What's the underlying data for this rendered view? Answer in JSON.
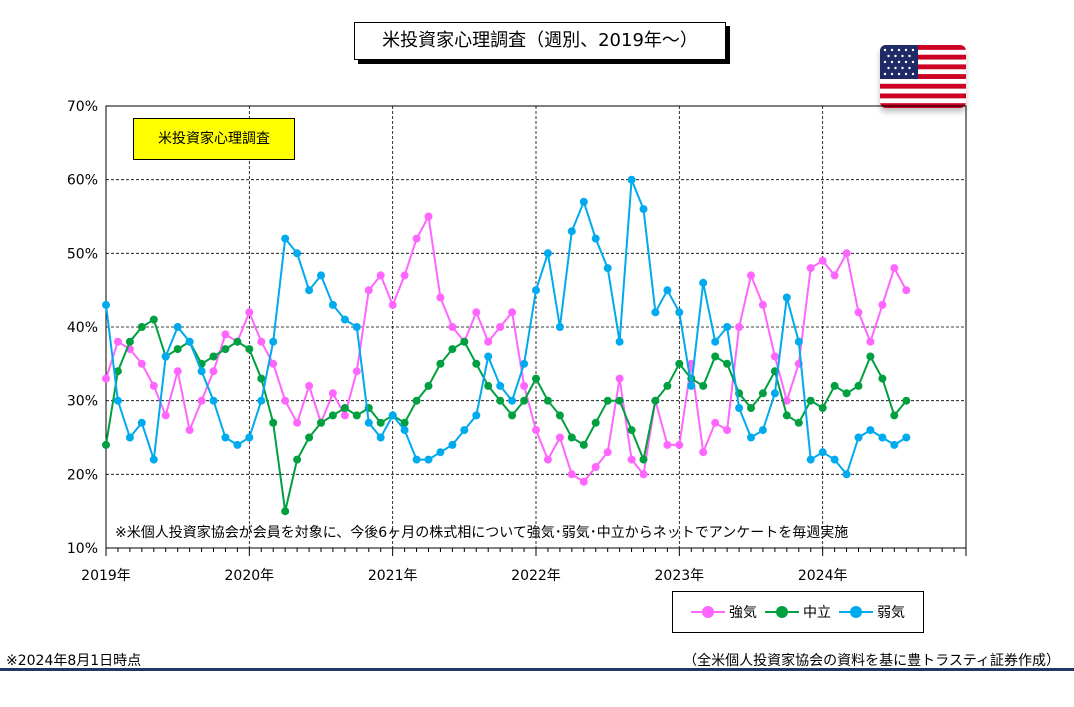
{
  "title": "米投資家心理調査（週別、2019年～）",
  "label_box": "米投資家心理調査",
  "note": "※米個人投資家協会が会員を対象に、今後6ヶ月の株式相について強気･弱気･中立からネットでアンケートを毎週実施",
  "footer_left": "※2024年8月1日時点",
  "footer_right": "（全米個人投資家協会の資料を基に豊トラスティ証券作成）",
  "flag_icon": "us-flag-icon",
  "chart_data": {
    "type": "line",
    "ylim": [
      10,
      70
    ],
    "y_ticks": [
      "10%",
      "20%",
      "30%",
      "40%",
      "50%",
      "60%",
      "70%"
    ],
    "x_range": [
      "2019-01",
      "2025-01"
    ],
    "x_ticks": [
      "2019年",
      "2020年",
      "2021年",
      "2022年",
      "2023年",
      "2024年"
    ],
    "grid": true,
    "legend_position": "bottom-right",
    "series": [
      {
        "name": "強気",
        "color": "#ff66ff",
        "values": [
          {
            "x": "2019-01",
            "y": 33
          },
          {
            "x": "2019-02",
            "y": 38
          },
          {
            "x": "2019-03",
            "y": 37
          },
          {
            "x": "2019-04",
            "y": 35
          },
          {
            "x": "2019-05",
            "y": 32
          },
          {
            "x": "2019-06",
            "y": 28
          },
          {
            "x": "2019-07",
            "y": 34
          },
          {
            "x": "2019-08",
            "y": 26
          },
          {
            "x": "2019-09",
            "y": 30
          },
          {
            "x": "2019-10",
            "y": 34
          },
          {
            "x": "2019-11",
            "y": 39
          },
          {
            "x": "2019-12",
            "y": 38
          },
          {
            "x": "2020-01",
            "y": 42
          },
          {
            "x": "2020-02",
            "y": 38
          },
          {
            "x": "2020-03",
            "y": 35
          },
          {
            "x": "2020-04",
            "y": 30
          },
          {
            "x": "2020-05",
            "y": 27
          },
          {
            "x": "2020-06",
            "y": 32
          },
          {
            "x": "2020-07",
            "y": 27
          },
          {
            "x": "2020-08",
            "y": 31
          },
          {
            "x": "2020-09",
            "y": 28
          },
          {
            "x": "2020-10",
            "y": 34
          },
          {
            "x": "2020-11",
            "y": 45
          },
          {
            "x": "2020-12",
            "y": 47
          },
          {
            "x": "2021-01",
            "y": 43
          },
          {
            "x": "2021-02",
            "y": 47
          },
          {
            "x": "2021-03",
            "y": 52
          },
          {
            "x": "2021-04",
            "y": 55
          },
          {
            "x": "2021-05",
            "y": 44
          },
          {
            "x": "2021-06",
            "y": 40
          },
          {
            "x": "2021-07",
            "y": 38
          },
          {
            "x": "2021-08",
            "y": 42
          },
          {
            "x": "2021-09",
            "y": 38
          },
          {
            "x": "2021-10",
            "y": 40
          },
          {
            "x": "2021-11",
            "y": 42
          },
          {
            "x": "2021-12",
            "y": 32
          },
          {
            "x": "2022-01",
            "y": 26
          },
          {
            "x": "2022-02",
            "y": 22
          },
          {
            "x": "2022-03",
            "y": 25
          },
          {
            "x": "2022-04",
            "y": 20
          },
          {
            "x": "2022-05",
            "y": 19
          },
          {
            "x": "2022-06",
            "y": 21
          },
          {
            "x": "2022-07",
            "y": 23
          },
          {
            "x": "2022-08",
            "y": 33
          },
          {
            "x": "2022-09",
            "y": 22
          },
          {
            "x": "2022-10",
            "y": 20
          },
          {
            "x": "2022-11",
            "y": 30
          },
          {
            "x": "2022-12",
            "y": 24
          },
          {
            "x": "2023-01",
            "y": 24
          },
          {
            "x": "2023-02",
            "y": 35
          },
          {
            "x": "2023-03",
            "y": 23
          },
          {
            "x": "2023-04",
            "y": 27
          },
          {
            "x": "2023-05",
            "y": 26
          },
          {
            "x": "2023-06",
            "y": 40
          },
          {
            "x": "2023-07",
            "y": 47
          },
          {
            "x": "2023-08",
            "y": 43
          },
          {
            "x": "2023-09",
            "y": 36
          },
          {
            "x": "2023-10",
            "y": 30
          },
          {
            "x": "2023-11",
            "y": 35
          },
          {
            "x": "2023-12",
            "y": 48
          },
          {
            "x": "2024-01",
            "y": 49
          },
          {
            "x": "2024-02",
            "y": 47
          },
          {
            "x": "2024-03",
            "y": 50
          },
          {
            "x": "2024-04",
            "y": 42
          },
          {
            "x": "2024-05",
            "y": 38
          },
          {
            "x": "2024-06",
            "y": 43
          },
          {
            "x": "2024-07",
            "y": 48
          },
          {
            "x": "2024-08",
            "y": 45
          }
        ]
      },
      {
        "name": "中立",
        "color": "#00a040",
        "values": [
          {
            "x": "2019-01",
            "y": 24
          },
          {
            "x": "2019-02",
            "y": 34
          },
          {
            "x": "2019-03",
            "y": 38
          },
          {
            "x": "2019-04",
            "y": 40
          },
          {
            "x": "2019-05",
            "y": 41
          },
          {
            "x": "2019-06",
            "y": 36
          },
          {
            "x": "2019-07",
            "y": 37
          },
          {
            "x": "2019-08",
            "y": 38
          },
          {
            "x": "2019-09",
            "y": 35
          },
          {
            "x": "2019-10",
            "y": 36
          },
          {
            "x": "2019-11",
            "y": 37
          },
          {
            "x": "2019-12",
            "y": 38
          },
          {
            "x": "2020-01",
            "y": 37
          },
          {
            "x": "2020-02",
            "y": 33
          },
          {
            "x": "2020-03",
            "y": 27
          },
          {
            "x": "2020-04",
            "y": 15
          },
          {
            "x": "2020-05",
            "y": 22
          },
          {
            "x": "2020-06",
            "y": 25
          },
          {
            "x": "2020-07",
            "y": 27
          },
          {
            "x": "2020-08",
            "y": 28
          },
          {
            "x": "2020-09",
            "y": 29
          },
          {
            "x": "2020-10",
            "y": 28
          },
          {
            "x": "2020-11",
            "y": 29
          },
          {
            "x": "2020-12",
            "y": 27
          },
          {
            "x": "2021-01",
            "y": 28
          },
          {
            "x": "2021-02",
            "y": 27
          },
          {
            "x": "2021-03",
            "y": 30
          },
          {
            "x": "2021-04",
            "y": 32
          },
          {
            "x": "2021-05",
            "y": 35
          },
          {
            "x": "2021-06",
            "y": 37
          },
          {
            "x": "2021-07",
            "y": 38
          },
          {
            "x": "2021-08",
            "y": 35
          },
          {
            "x": "2021-09",
            "y": 32
          },
          {
            "x": "2021-10",
            "y": 30
          },
          {
            "x": "2021-11",
            "y": 28
          },
          {
            "x": "2021-12",
            "y": 30
          },
          {
            "x": "2022-01",
            "y": 33
          },
          {
            "x": "2022-02",
            "y": 30
          },
          {
            "x": "2022-03",
            "y": 28
          },
          {
            "x": "2022-04",
            "y": 25
          },
          {
            "x": "2022-05",
            "y": 24
          },
          {
            "x": "2022-06",
            "y": 27
          },
          {
            "x": "2022-07",
            "y": 30
          },
          {
            "x": "2022-08",
            "y": 30
          },
          {
            "x": "2022-09",
            "y": 26
          },
          {
            "x": "2022-10",
            "y": 22
          },
          {
            "x": "2022-11",
            "y": 30
          },
          {
            "x": "2022-12",
            "y": 32
          },
          {
            "x": "2023-01",
            "y": 35
          },
          {
            "x": "2023-02",
            "y": 33
          },
          {
            "x": "2023-03",
            "y": 32
          },
          {
            "x": "2023-04",
            "y": 36
          },
          {
            "x": "2023-05",
            "y": 35
          },
          {
            "x": "2023-06",
            "y": 31
          },
          {
            "x": "2023-07",
            "y": 29
          },
          {
            "x": "2023-08",
            "y": 31
          },
          {
            "x": "2023-09",
            "y": 34
          },
          {
            "x": "2023-10",
            "y": 28
          },
          {
            "x": "2023-11",
            "y": 27
          },
          {
            "x": "2023-12",
            "y": 30
          },
          {
            "x": "2024-01",
            "y": 29
          },
          {
            "x": "2024-02",
            "y": 32
          },
          {
            "x": "2024-03",
            "y": 31
          },
          {
            "x": "2024-04",
            "y": 32
          },
          {
            "x": "2024-05",
            "y": 36
          },
          {
            "x": "2024-06",
            "y": 33
          },
          {
            "x": "2024-07",
            "y": 28
          },
          {
            "x": "2024-08",
            "y": 30
          }
        ]
      },
      {
        "name": "弱気",
        "color": "#00aaee",
        "values": [
          {
            "x": "2019-01",
            "y": 43
          },
          {
            "x": "2019-02",
            "y": 30
          },
          {
            "x": "2019-03",
            "y": 25
          },
          {
            "x": "2019-04",
            "y": 27
          },
          {
            "x": "2019-05",
            "y": 22
          },
          {
            "x": "2019-06",
            "y": 36
          },
          {
            "x": "2019-07",
            "y": 40
          },
          {
            "x": "2019-08",
            "y": 38
          },
          {
            "x": "2019-09",
            "y": 34
          },
          {
            "x": "2019-10",
            "y": 30
          },
          {
            "x": "2019-11",
            "y": 25
          },
          {
            "x": "2019-12",
            "y": 24
          },
          {
            "x": "2020-01",
            "y": 25
          },
          {
            "x": "2020-02",
            "y": 30
          },
          {
            "x": "2020-03",
            "y": 38
          },
          {
            "x": "2020-04",
            "y": 52
          },
          {
            "x": "2020-05",
            "y": 50
          },
          {
            "x": "2020-06",
            "y": 45
          },
          {
            "x": "2020-07",
            "y": 47
          },
          {
            "x": "2020-08",
            "y": 43
          },
          {
            "x": "2020-09",
            "y": 41
          },
          {
            "x": "2020-10",
            "y": 40
          },
          {
            "x": "2020-11",
            "y": 27
          },
          {
            "x": "2020-12",
            "y": 25
          },
          {
            "x": "2021-01",
            "y": 28
          },
          {
            "x": "2021-02",
            "y": 26
          },
          {
            "x": "2021-03",
            "y": 22
          },
          {
            "x": "2021-04",
            "y": 22
          },
          {
            "x": "2021-05",
            "y": 23
          },
          {
            "x": "2021-06",
            "y": 24
          },
          {
            "x": "2021-07",
            "y": 26
          },
          {
            "x": "2021-08",
            "y": 28
          },
          {
            "x": "2021-09",
            "y": 36
          },
          {
            "x": "2021-10",
            "y": 32
          },
          {
            "x": "2021-11",
            "y": 30
          },
          {
            "x": "2021-12",
            "y": 35
          },
          {
            "x": "2022-01",
            "y": 45
          },
          {
            "x": "2022-02",
            "y": 50
          },
          {
            "x": "2022-03",
            "y": 40
          },
          {
            "x": "2022-04",
            "y": 53
          },
          {
            "x": "2022-05",
            "y": 57
          },
          {
            "x": "2022-06",
            "y": 52
          },
          {
            "x": "2022-07",
            "y": 48
          },
          {
            "x": "2022-08",
            "y": 38
          },
          {
            "x": "2022-09",
            "y": 60
          },
          {
            "x": "2022-10",
            "y": 56
          },
          {
            "x": "2022-11",
            "y": 42
          },
          {
            "x": "2022-12",
            "y": 45
          },
          {
            "x": "2023-01",
            "y": 42
          },
          {
            "x": "2023-02",
            "y": 32
          },
          {
            "x": "2023-03",
            "y": 46
          },
          {
            "x": "2023-04",
            "y": 38
          },
          {
            "x": "2023-05",
            "y": 40
          },
          {
            "x": "2023-06",
            "y": 29
          },
          {
            "x": "2023-07",
            "y": 25
          },
          {
            "x": "2023-08",
            "y": 26
          },
          {
            "x": "2023-09",
            "y": 31
          },
          {
            "x": "2023-10",
            "y": 44
          },
          {
            "x": "2023-11",
            "y": 38
          },
          {
            "x": "2023-12",
            "y": 22
          },
          {
            "x": "2024-01",
            "y": 23
          },
          {
            "x": "2024-02",
            "y": 22
          },
          {
            "x": "2024-03",
            "y": 20
          },
          {
            "x": "2024-04",
            "y": 25
          },
          {
            "x": "2024-05",
            "y": 26
          },
          {
            "x": "2024-06",
            "y": 25
          },
          {
            "x": "2024-07",
            "y": 24
          },
          {
            "x": "2024-08",
            "y": 25
          }
        ]
      }
    ]
  }
}
